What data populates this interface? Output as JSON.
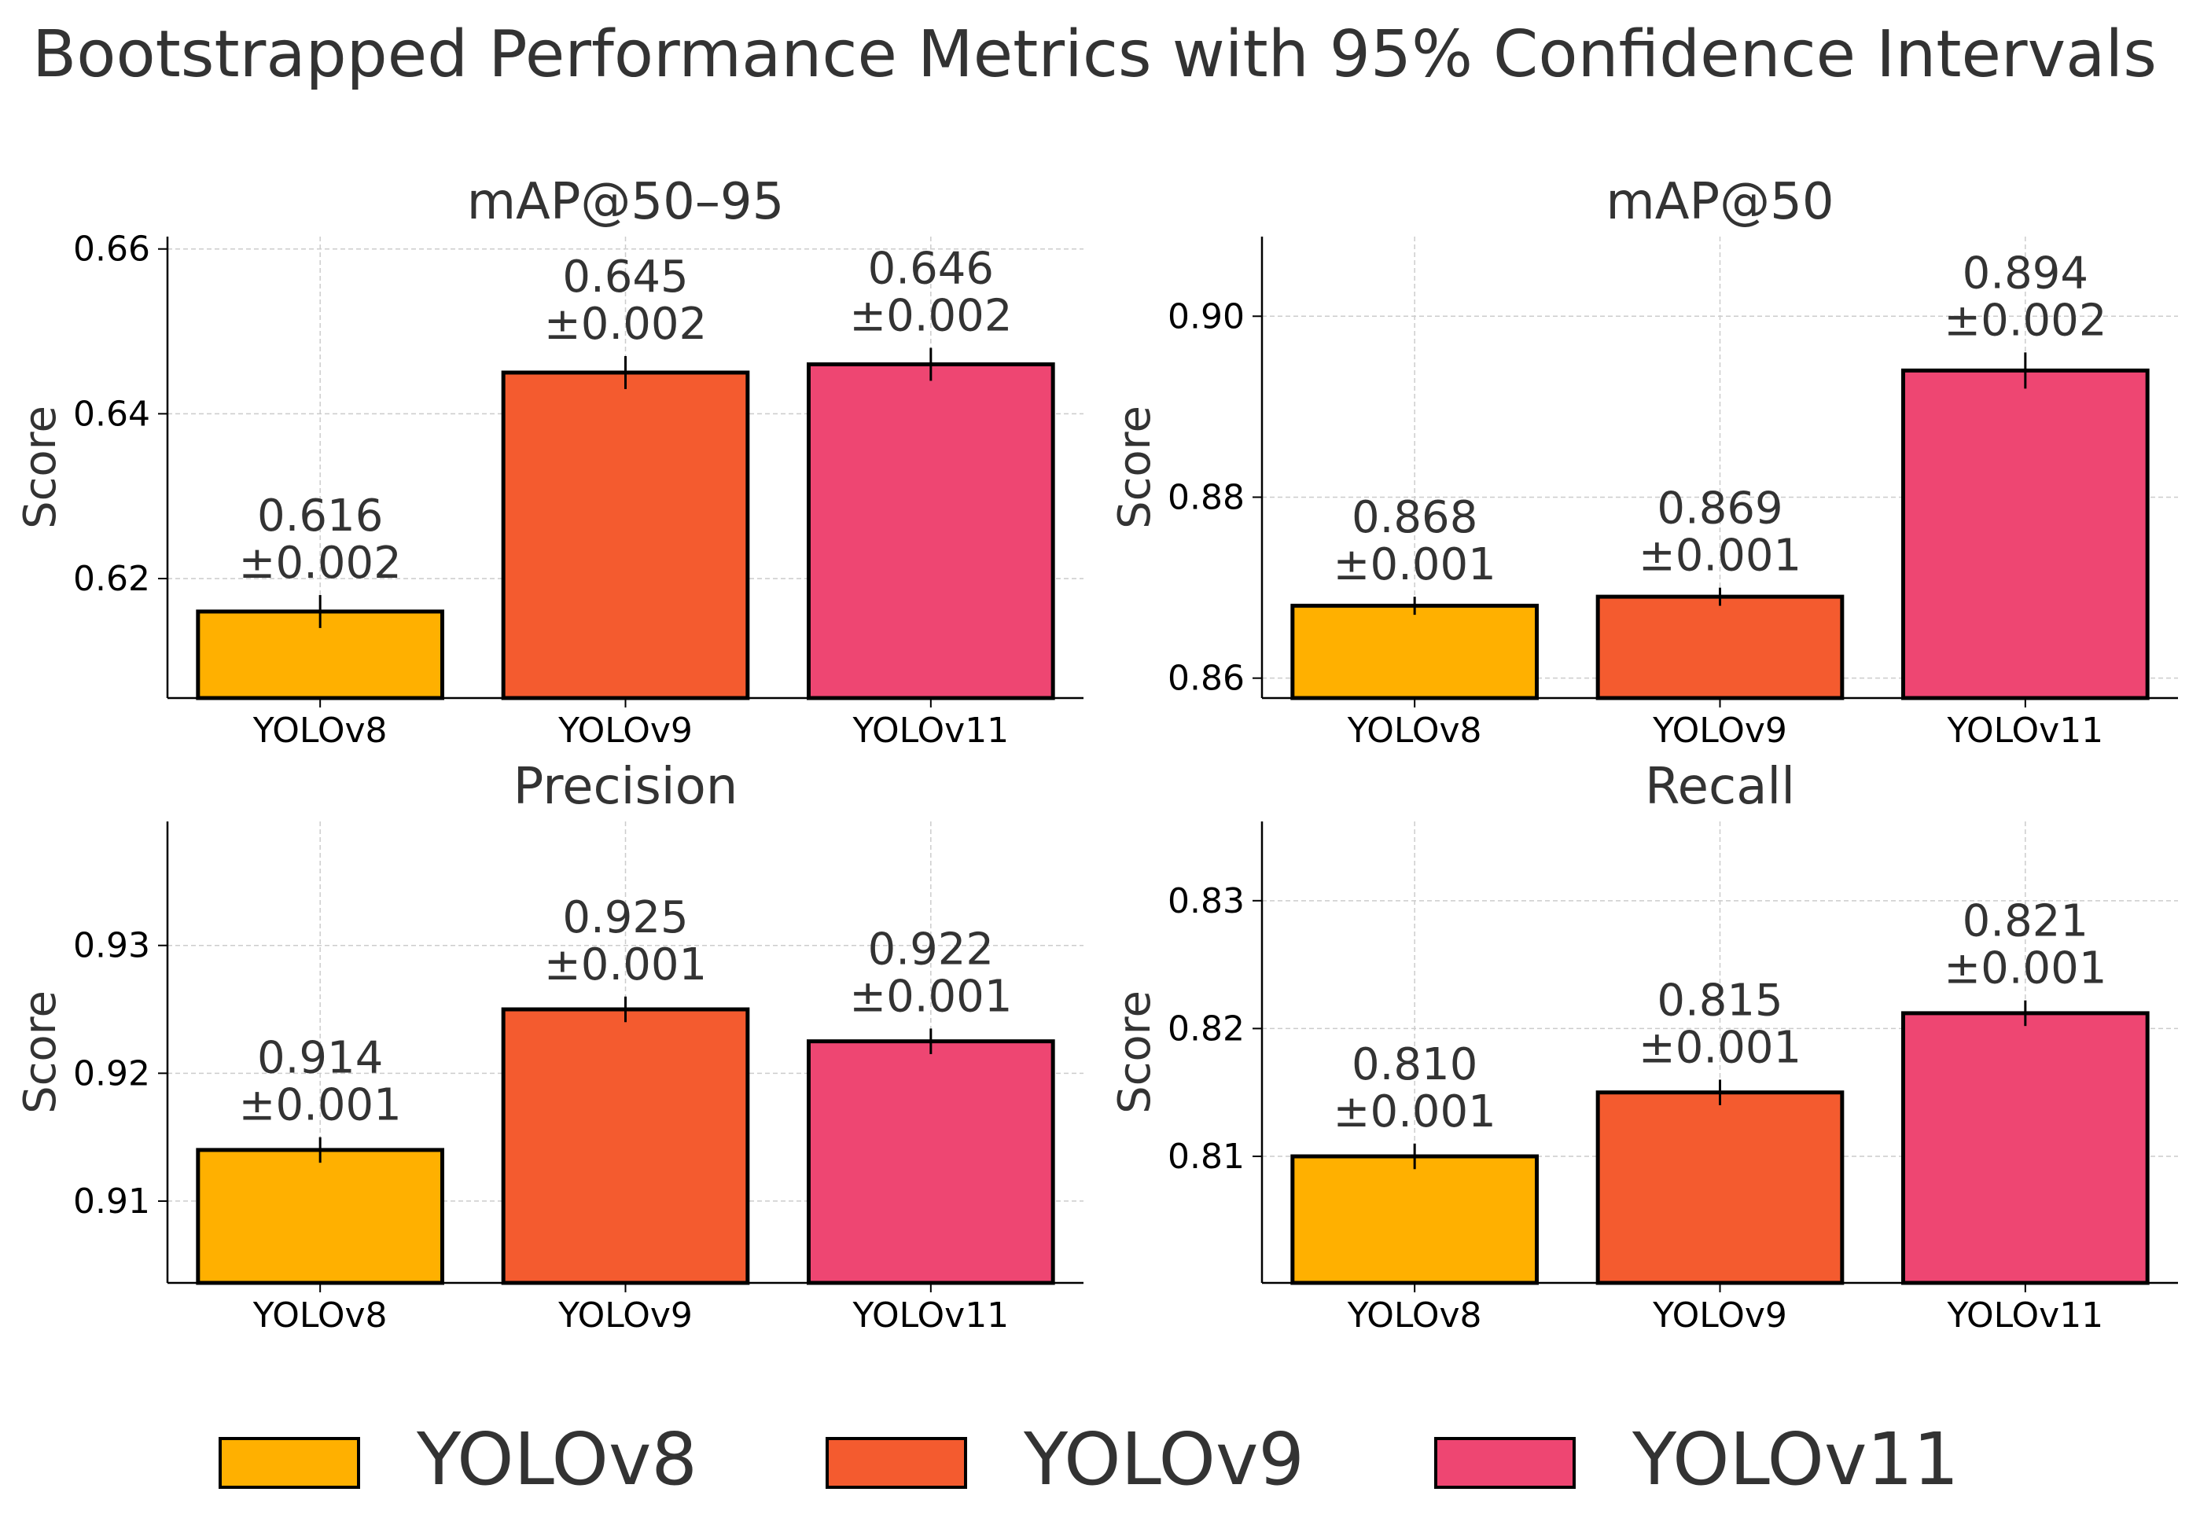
{
  "figure": {
    "title": "Bootstrapped Performance Metrics with 95% Confidence Intervals"
  },
  "colors": {
    "YOLOv8": "#FFB000",
    "YOLOv9": "#F45B2F",
    "YOLOv11": "#EE4672",
    "text": "#333333",
    "grid": "#cccccc"
  },
  "legend": {
    "position": "bottom-center",
    "entries": [
      "YOLOv8",
      "YOLOv9",
      "YOLOv11"
    ]
  },
  "chart_data": [
    {
      "type": "bar",
      "title": "mAP@50–95",
      "xlabel": "",
      "ylabel": "Score",
      "categories": [
        "YOLOv8",
        "YOLOv9",
        "YOLOv11"
      ],
      "values": [
        0.616,
        0.645,
        0.646
      ],
      "errors": [
        0.002,
        0.002,
        0.002
      ],
      "labels": [
        "0.616\n±0.002",
        "0.645\n±0.002",
        "0.646\n±0.002"
      ],
      "ylim": [
        0.6055,
        0.6615
      ],
      "yticks": [
        0.62,
        0.64,
        0.66
      ],
      "ytick_labels": [
        "0.62",
        "0.64",
        "0.66"
      ],
      "grid": true
    },
    {
      "type": "bar",
      "title": "mAP@50",
      "xlabel": "",
      "ylabel": "Score",
      "categories": [
        "YOLOv8",
        "YOLOv9",
        "YOLOv11"
      ],
      "values": [
        0.868,
        0.869,
        0.894
      ],
      "errors": [
        0.001,
        0.001,
        0.002
      ],
      "labels": [
        "0.868\n±0.001",
        "0.869\n±0.001",
        "0.894\n±0.002"
      ],
      "ylim": [
        0.8578,
        0.9088
      ],
      "yticks": [
        0.86,
        0.88,
        0.9
      ],
      "ytick_labels": [
        "0.86",
        "0.88",
        "0.90"
      ],
      "grid": true
    },
    {
      "type": "bar",
      "title": "Precision",
      "xlabel": "",
      "ylabel": "Score",
      "categories": [
        "YOLOv8",
        "YOLOv9",
        "YOLOv11"
      ],
      "values": [
        0.914,
        0.925,
        0.9225
      ],
      "errors": [
        0.001,
        0.001,
        0.001
      ],
      "labels": [
        "0.914\n±0.001",
        "0.925\n±0.001",
        "0.922\n±0.001"
      ],
      "ylim": [
        0.9036,
        0.9397
      ],
      "yticks": [
        0.91,
        0.92,
        0.93
      ],
      "ytick_labels": [
        "0.91",
        "0.92",
        "0.93"
      ],
      "grid": true
    },
    {
      "type": "bar",
      "title": "Recall",
      "xlabel": "",
      "ylabel": "Score",
      "categories": [
        "YOLOv8",
        "YOLOv9",
        "YOLOv11"
      ],
      "values": [
        0.81,
        0.815,
        0.8212
      ],
      "errors": [
        0.001,
        0.001,
        0.001
      ],
      "labels": [
        "0.810\n±0.001",
        "0.815\n±0.001",
        "0.821\n±0.001"
      ],
      "ylim": [
        0.8001,
        0.8362
      ],
      "yticks": [
        0.81,
        0.82,
        0.83
      ],
      "ytick_labels": [
        "0.81",
        "0.82",
        "0.83"
      ],
      "grid": true
    }
  ]
}
